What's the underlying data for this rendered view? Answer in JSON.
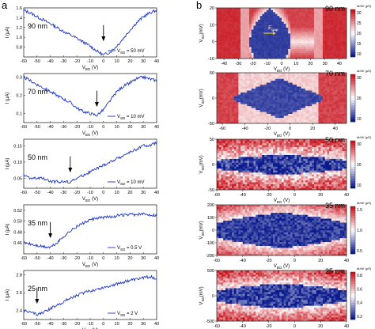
{
  "panel_labels": {
    "a": "a",
    "b": "b"
  },
  "axis_label_i": "I (μA)",
  "axis_label_vbg": "V",
  "axis_label_vbg_sub": "BG",
  "axis_label_vbg_unit": " (V)",
  "axis_label_vsd": "V",
  "axis_label_vsd_sub": "SD",
  "axis_label_vsd_unit": "(mV)",
  "colorbar_unit": "dI/dV (μS)",
  "egap_label": "E",
  "egap_sub": "gap",
  "colors": {
    "line": "#1f36c4",
    "map_low": "#0b1a8c",
    "map_mid": "#ffffff",
    "map_high": "#c8141e"
  },
  "chart_data": [
    {
      "type": "line",
      "panel": "a1",
      "annotation": "90 nm",
      "legend": "V",
      "legend_sub": "SD",
      "legend_val": " = 50 mV",
      "xlim": [
        -60,
        40
      ],
      "ylim": [
        0.6,
        1.6
      ],
      "xticks": [
        "-60",
        "-50",
        "-40",
        "-30",
        "-20",
        "-10",
        "0",
        "10",
        "20",
        "30",
        "40"
      ],
      "yticks": [
        "0.8",
        "1.0",
        "1.2",
        "1.4",
        "1.6"
      ],
      "yticks_val": [
        0.8,
        1.0,
        1.2,
        1.4,
        1.6
      ],
      "arrow_x": 0,
      "x": [
        -60,
        -55,
        -50,
        -45,
        -40,
        -35,
        -30,
        -25,
        -20,
        -15,
        -10,
        -5,
        0,
        5,
        10,
        15,
        20,
        25,
        30,
        35,
        40
      ],
      "y": [
        1.55,
        1.5,
        1.42,
        1.35,
        1.28,
        1.2,
        1.12,
        1.05,
        0.98,
        0.9,
        0.82,
        0.72,
        0.64,
        0.7,
        0.82,
        0.98,
        1.15,
        1.3,
        1.42,
        1.5,
        1.55
      ]
    },
    {
      "type": "line",
      "panel": "a2",
      "annotation": "70 nm",
      "legend": "V",
      "legend_sub": "SD",
      "legend_val": " = 10 mV",
      "xlim": [
        -60,
        40
      ],
      "ylim": [
        0.05,
        0.32
      ],
      "xticks": [
        "-60",
        "-50",
        "-40",
        "-30",
        "-20",
        "-10",
        "0",
        "10",
        "20",
        "30",
        "40"
      ],
      "yticks": [
        "0.1",
        "0.2",
        "0.3"
      ],
      "yticks_val": [
        0.1,
        0.2,
        0.3
      ],
      "arrow_x": -5,
      "x": [
        -60,
        -55,
        -50,
        -45,
        -40,
        -35,
        -30,
        -25,
        -20,
        -15,
        -10,
        -5,
        0,
        5,
        10,
        15,
        20,
        25,
        30,
        35,
        40
      ],
      "y": [
        0.3,
        0.28,
        0.26,
        0.24,
        0.22,
        0.2,
        0.18,
        0.16,
        0.13,
        0.11,
        0.1,
        0.09,
        0.12,
        0.17,
        0.22,
        0.25,
        0.27,
        0.29,
        0.3,
        0.29,
        0.28
      ]
    },
    {
      "type": "line",
      "panel": "a3",
      "annotation": "50 nm",
      "legend": "V",
      "legend_sub": "SD",
      "legend_val": " = 10 mV",
      "xlim": [
        -60,
        40
      ],
      "ylim": [
        0.02,
        0.17
      ],
      "xticks": [
        "-60",
        "-50",
        "-40",
        "-30",
        "-20",
        "-10",
        "0",
        "10",
        "20",
        "30",
        "40"
      ],
      "yticks": [
        "0.05",
        "0.10",
        "0.15"
      ],
      "yticks_val": [
        0.05,
        0.1,
        0.15
      ],
      "arrow_x": -25,
      "x": [
        -60,
        -55,
        -50,
        -45,
        -40,
        -35,
        -30,
        -25,
        -20,
        -15,
        -10,
        -5,
        0,
        5,
        10,
        15,
        20,
        25,
        30,
        35,
        40
      ],
      "y": [
        0.06,
        0.05,
        0.05,
        0.05,
        0.04,
        0.04,
        0.04,
        0.04,
        0.05,
        0.06,
        0.07,
        0.08,
        0.09,
        0.1,
        0.11,
        0.12,
        0.13,
        0.14,
        0.15,
        0.15,
        0.16
      ]
    },
    {
      "type": "line",
      "panel": "a4",
      "annotation": "35 nm",
      "legend": "V",
      "legend_sub": "SD",
      "legend_val": " = 0.5 V",
      "xlim": [
        -60,
        40
      ],
      "ylim": [
        0.44,
        0.53
      ],
      "xticks": [
        "-60",
        "-50",
        "-40",
        "-30",
        "-20",
        "-10",
        "0",
        "10",
        "20",
        "30",
        "40"
      ],
      "yticks": [
        "0.46",
        "0.48",
        "0.50",
        "0.52"
      ],
      "yticks_val": [
        0.46,
        0.48,
        0.5,
        0.52
      ],
      "arrow_x": -40,
      "x": [
        -60,
        -55,
        -50,
        -45,
        -40,
        -35,
        -30,
        -25,
        -20,
        -15,
        -10,
        -5,
        0,
        5,
        10,
        15,
        20,
        25,
        30,
        35,
        40
      ],
      "y": [
        0.461,
        0.458,
        0.455,
        0.453,
        0.452,
        0.46,
        0.472,
        0.482,
        0.49,
        0.497,
        0.502,
        0.505,
        0.507,
        0.508,
        0.51,
        0.511,
        0.512,
        0.512,
        0.513,
        0.512,
        0.511
      ]
    },
    {
      "type": "line",
      "panel": "a5",
      "annotation": "25 nm",
      "legend": "V",
      "legend_sub": "SD",
      "legend_val": " = 2 V",
      "xlim": [
        -60,
        40
      ],
      "ylim": [
        2.3,
        2.85
      ],
      "xticks": [
        "-60",
        "-50",
        "-40",
        "-30",
        "-20",
        "-10",
        "0",
        "10",
        "20",
        "30",
        "40"
      ],
      "yticks": [
        "2.4",
        "2.6",
        "2.8"
      ],
      "yticks_val": [
        2.4,
        2.6,
        2.8
      ],
      "arrow_x": -50,
      "x": [
        -60,
        -55,
        -50,
        -45,
        -40,
        -35,
        -30,
        -25,
        -20,
        -15,
        -10,
        -5,
        0,
        5,
        10,
        15,
        20,
        25,
        30,
        35,
        40
      ],
      "y": [
        2.4,
        2.38,
        2.36,
        2.38,
        2.42,
        2.46,
        2.5,
        2.54,
        2.57,
        2.6,
        2.62,
        2.64,
        2.66,
        2.68,
        2.7,
        2.72,
        2.74,
        2.75,
        2.77,
        2.78,
        2.76
      ]
    },
    {
      "type": "heatmap",
      "panel": "b1",
      "annotation": "90 nm",
      "xlim": [
        -45,
        45
      ],
      "ylim": [
        -10,
        20
      ],
      "xticks": [
        "-40",
        "-30",
        "-20",
        "-10",
        "0",
        "10",
        "20",
        "30",
        "40"
      ],
      "xticks_val": [
        -40,
        -30,
        -20,
        -10,
        0,
        10,
        20,
        30,
        40
      ],
      "yticks": [
        "20",
        "10",
        "0",
        "-10"
      ],
      "yticks_val": [
        20,
        10,
        0,
        -10
      ],
      "cbar_ticks": [
        "30",
        "25",
        "20",
        "15",
        "10"
      ],
      "cbar_range": [
        8,
        30
      ],
      "gap_halfwidth_vbg": 14,
      "gap_depth_vsd": 20,
      "noise": 0.04
    },
    {
      "type": "heatmap",
      "panel": "b2",
      "annotation": "70 nm",
      "xlim": [
        -65,
        50
      ],
      "ylim": [
        -50,
        50
      ],
      "xticks": [
        "-60",
        "-40",
        "-20",
        "0",
        "20",
        "40"
      ],
      "xticks_val": [
        -60,
        -40,
        -20,
        0,
        20,
        40
      ],
      "yticks": [
        "50",
        "0",
        "-50"
      ],
      "yticks_val": [
        50,
        0,
        -50
      ],
      "cbar_ticks": [
        "30",
        "20",
        "10"
      ],
      "cbar_range": [
        5,
        35
      ],
      "gap_halfwidth_vbg": 40,
      "gap_depth_vsd": 40,
      "noise": 0.08
    },
    {
      "type": "heatmap",
      "panel": "b3",
      "annotation": "50 nm",
      "xlim": [
        -60,
        40
      ],
      "ylim": [
        -50,
        50
      ],
      "xticks": [
        "-60",
        "-40",
        "-20",
        "0",
        "20",
        "40"
      ],
      "xticks_val": [
        -60,
        -40,
        -20,
        0,
        20,
        40
      ],
      "yticks": [
        "50",
        "0",
        "-50"
      ],
      "yticks_val": [
        50,
        0,
        -50
      ],
      "cbar_ticks": [
        "30",
        "20",
        "10"
      ],
      "cbar_range": [
        5,
        35
      ],
      "gap_halfwidth_vbg": 60,
      "gap_depth_vsd": 20,
      "noise": 0.35
    },
    {
      "type": "heatmap",
      "panel": "b4",
      "annotation": "35 nm",
      "xlim": [
        -60,
        40
      ],
      "ylim": [
        -200,
        200
      ],
      "xticks": [
        "-60",
        "-40",
        "-20",
        "0",
        "20",
        "40"
      ],
      "xticks_val": [
        -60,
        -40,
        -20,
        0,
        20,
        40
      ],
      "yticks": [
        "200",
        "100",
        "0",
        "-100",
        "-200"
      ],
      "yticks_val": [
        200,
        100,
        0,
        -100,
        -200
      ],
      "cbar_ticks": [
        "1.5",
        "1.0",
        "0.5"
      ],
      "cbar_range": [
        0.2,
        1.6
      ],
      "gap_halfwidth_vbg": 60,
      "gap_depth_vsd": 140,
      "noise": 0.2
    },
    {
      "type": "heatmap",
      "panel": "b5",
      "annotation": "25 nm",
      "xlim": [
        -60,
        40
      ],
      "ylim": [
        -500,
        500
      ],
      "xticks": [
        "-60",
        "-40",
        "-20",
        "0",
        "20",
        "40"
      ],
      "xticks_val": [
        -60,
        -40,
        -20,
        0,
        20,
        40
      ],
      "yticks": [
        "500",
        "0",
        "-500"
      ],
      "yticks_val": [
        500,
        0,
        -500
      ],
      "cbar_ticks": [
        "0.8",
        "0.6",
        "0.4",
        "0.2"
      ],
      "cbar_range": [
        0.1,
        0.85
      ],
      "gap_halfwidth_vbg": 60,
      "gap_depth_vsd": 250,
      "noise": 0.3
    }
  ]
}
